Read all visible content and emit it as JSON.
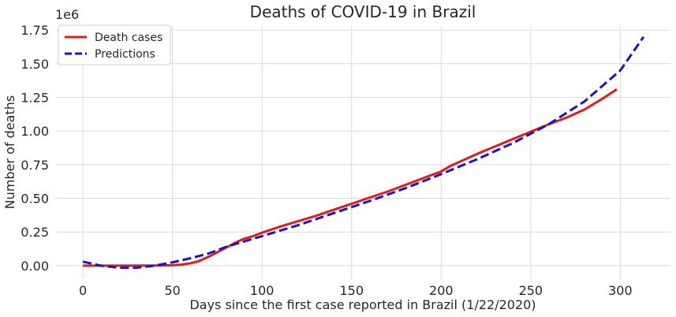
{
  "chart_data": {
    "type": "line",
    "title": "Deaths of COVID-19 in Brazil",
    "xlabel": "Days since the first case reported in Brazil (1/22/2020)",
    "ylabel": "Number of deaths",
    "y_scale_label": "1e6",
    "xlim": [
      -15,
      328
    ],
    "ylim": [
      -0.1,
      1.78
    ],
    "x_ticks": [
      0,
      50,
      100,
      150,
      200,
      250,
      300
    ],
    "y_ticks": [
      0.0,
      0.25,
      0.5,
      0.75,
      1.0,
      1.25,
      1.5,
      1.75
    ],
    "x_tick_labels": [
      "0",
      "50",
      "100",
      "150",
      "200",
      "250",
      "300"
    ],
    "y_tick_labels": [
      "0.00",
      "0.25",
      "0.50",
      "0.75",
      "1.00",
      "1.25",
      "1.50",
      "1.75"
    ],
    "grid": true,
    "legend_position": "top-left",
    "series": [
      {
        "name": "Death cases",
        "color": "#e31a1c",
        "style": "solid",
        "x": [
          0,
          20,
          40,
          50,
          55,
          60,
          65,
          70,
          75,
          80,
          85,
          90,
          95,
          100,
          110,
          120,
          130,
          140,
          150,
          160,
          170,
          180,
          190,
          200,
          205,
          210,
          220,
          230,
          240,
          250,
          260,
          270,
          280,
          290,
          298
        ],
        "y": [
          0.0,
          0.0,
          0.001,
          0.003,
          0.008,
          0.018,
          0.035,
          0.065,
          0.1,
          0.135,
          0.17,
          0.2,
          0.22,
          0.245,
          0.29,
          0.33,
          0.37,
          0.415,
          0.46,
          0.505,
          0.55,
          0.6,
          0.65,
          0.7,
          0.74,
          0.77,
          0.83,
          0.885,
          0.94,
          0.995,
          1.05,
          1.1,
          1.16,
          1.24,
          1.31
        ]
      },
      {
        "name": "Predictions",
        "color": "#1f10c9",
        "style": "dashed",
        "x": [
          0,
          10,
          20,
          30,
          40,
          50,
          60,
          70,
          80,
          90,
          100,
          120,
          140,
          160,
          180,
          200,
          220,
          240,
          260,
          280,
          300,
          313
        ],
        "y": [
          0.03,
          0.0,
          -0.015,
          -0.015,
          0.0,
          0.025,
          0.055,
          0.09,
          0.14,
          0.18,
          0.22,
          0.3,
          0.39,
          0.48,
          0.575,
          0.68,
          0.79,
          0.91,
          1.05,
          1.22,
          1.45,
          1.7
        ]
      }
    ]
  }
}
